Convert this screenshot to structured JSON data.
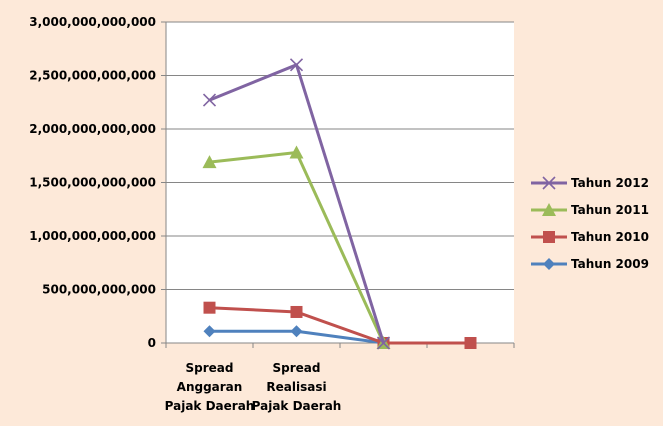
{
  "chart_data": {
    "type": "line",
    "categories": [
      [
        "Spread",
        "Anggaran",
        "Pajak Daerah"
      ],
      [
        "Spread",
        "Realisasi",
        "Pajak Daerah"
      ],
      [
        ""
      ],
      [
        ""
      ]
    ],
    "y_ticks": [
      "3,000,000,000,000",
      "2,500,000,000,000",
      "2,000,000,000,000",
      "1,500,000,000,000",
      "1,000,000,000,000",
      "500,000,000,000",
      "0"
    ],
    "ylim": [
      0,
      3000000000000
    ],
    "grid": true,
    "legend_position": "right",
    "series": [
      {
        "name": "Tahun 2012",
        "color": "#8064a2",
        "marker": "x",
        "values": [
          2270000000000,
          2600000000000,
          0,
          null
        ]
      },
      {
        "name": "Tahun 2011",
        "color": "#9bbb59",
        "marker": "triangle",
        "values": [
          1690000000000,
          1780000000000,
          0,
          null
        ]
      },
      {
        "name": "Tahun 2010",
        "color": "#c0504d",
        "marker": "square",
        "values": [
          330000000000,
          290000000000,
          0,
          0
        ]
      },
      {
        "name": "Tahun 2009",
        "color": "#4f81bd",
        "marker": "diamond",
        "values": [
          110000000000,
          110000000000,
          0,
          0
        ]
      }
    ]
  }
}
